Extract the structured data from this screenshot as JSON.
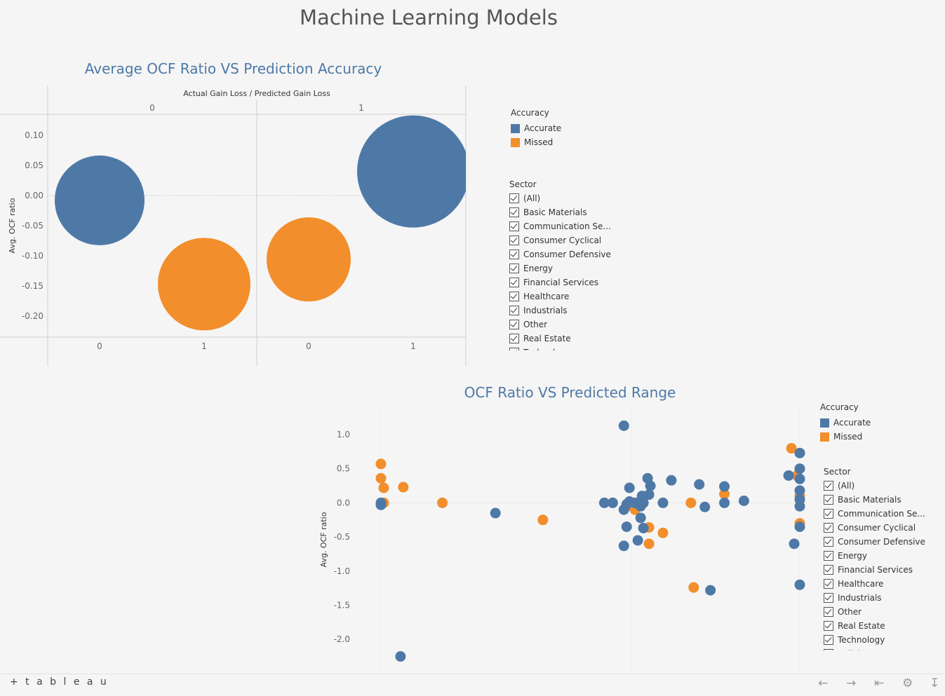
{
  "dashboard": {
    "title": "Machine Learning Models"
  },
  "colors": {
    "accurate": "#4e79a7",
    "missed": "#f28e2b",
    "title_blue": "#4e79a7"
  },
  "chart_data": [
    {
      "type": "scatter",
      "title": "Average OCF Ratio VS Prediction Accuracy",
      "column_header": "Actual Gain Loss / Predicted Gain Loss",
      "column_groups": [
        "0",
        "1"
      ],
      "categories": [
        "0",
        "1",
        "0",
        "1"
      ],
      "ylabel": "Avg. OCF ratio",
      "ylim": [
        -0.235,
        0.135
      ],
      "yticks": [
        "0.10",
        "0.05",
        "0.00",
        "-0.05",
        "-0.10",
        "-0.15",
        "-0.20"
      ],
      "yticks_values": [
        0.1,
        0.05,
        0.0,
        -0.05,
        -0.1,
        -0.15,
        -0.2
      ],
      "series": [
        {
          "name": "Accurate",
          "points": [
            {
              "panel": 0,
              "sub": 0,
              "y": -0.008,
              "size": 64
            },
            {
              "panel": 1,
              "sub": 1,
              "y": 0.04,
              "size": 80
            }
          ]
        },
        {
          "name": "Missed",
          "points": [
            {
              "panel": 0,
              "sub": 1,
              "y": -0.147,
              "size": 66
            },
            {
              "panel": 1,
              "sub": 0,
              "y": -0.106,
              "size": 60
            }
          ]
        }
      ]
    },
    {
      "type": "scatter",
      "title": "OCF Ratio VS Predicted Range",
      "ylabel": "Avg. OCF ratio",
      "ylim": [
        -2.46,
        1.37
      ],
      "yticks": [
        "1.0",
        "0.5",
        "0.0",
        "-0.5",
        "-1.0",
        "-1.5",
        "-2.0"
      ],
      "yticks_values": [
        1.0,
        0.5,
        0.0,
        -0.5,
        -1.0,
        -1.5,
        -2.0
      ],
      "series": [
        {
          "name": "Accurate",
          "points": [
            [
              0.0,
              0.0
            ],
            [
              0.0,
              -0.03
            ],
            [
              0.07,
              -2.25
            ],
            [
              0.41,
              -0.15
            ],
            [
              0.8,
              0.0
            ],
            [
              0.83,
              0.0
            ],
            [
              0.87,
              1.13
            ],
            [
              0.87,
              -0.1
            ],
            [
              0.88,
              -0.35
            ],
            [
              0.87,
              -0.63
            ],
            [
              0.88,
              -0.02
            ],
            [
              0.89,
              0.02
            ],
            [
              0.89,
              0.22
            ],
            [
              0.91,
              0.0
            ],
            [
              0.92,
              -0.55
            ],
            [
              0.93,
              -0.05
            ],
            [
              0.93,
              -0.22
            ],
            [
              0.935,
              0.1
            ],
            [
              0.94,
              0.0
            ],
            [
              0.94,
              -0.37
            ],
            [
              0.955,
              0.36
            ],
            [
              0.96,
              0.12
            ],
            [
              0.965,
              0.25
            ],
            [
              1.01,
              0.0
            ],
            [
              1.04,
              0.33
            ],
            [
              1.14,
              0.27
            ],
            [
              1.16,
              -0.06
            ],
            [
              1.23,
              0.24
            ],
            [
              1.23,
              0.0
            ],
            [
              1.3,
              0.03
            ],
            [
              1.18,
              -1.28
            ],
            [
              1.46,
              0.4
            ],
            [
              1.48,
              -0.6
            ],
            [
              1.5,
              0.73
            ],
            [
              1.5,
              0.5
            ],
            [
              1.5,
              0.35
            ],
            [
              1.5,
              0.18
            ],
            [
              1.5,
              0.05
            ],
            [
              1.5,
              -0.05
            ],
            [
              1.5,
              -0.35
            ],
            [
              1.5,
              -1.2
            ]
          ]
        },
        {
          "name": "Missed",
          "points": [
            [
              0.0,
              0.57
            ],
            [
              0.0,
              0.36
            ],
            [
              0.01,
              0.22
            ],
            [
              0.01,
              0.0
            ],
            [
              0.08,
              0.23
            ],
            [
              0.22,
              0.0
            ],
            [
              0.58,
              -0.25
            ],
            [
              0.89,
              -0.04
            ],
            [
              0.91,
              -0.1
            ],
            [
              0.93,
              0.02
            ],
            [
              0.96,
              -0.36
            ],
            [
              0.96,
              -0.6
            ],
            [
              1.01,
              -0.44
            ],
            [
              1.11,
              0.0
            ],
            [
              1.12,
              -1.24
            ],
            [
              1.23,
              0.13
            ],
            [
              1.47,
              0.8
            ],
            [
              1.49,
              0.4
            ],
            [
              1.5,
              0.1
            ],
            [
              1.5,
              -0.3
            ]
          ]
        }
      ]
    }
  ],
  "legend_top": {
    "title": "Accuracy",
    "items": [
      {
        "label": "Accurate"
      },
      {
        "label": "Missed"
      }
    ]
  },
  "sector_filter_top": {
    "title": "Sector",
    "items": [
      "(All)",
      "Basic Materials",
      "Communication Se...",
      "Consumer Cyclical",
      "Consumer Defensive",
      "Energy",
      "Financial Services",
      "Healthcare",
      "Industrials",
      "Other",
      "Real Estate",
      "Technology"
    ]
  },
  "legend_bottom": {
    "title": "Accuracy",
    "items": [
      {
        "label": "Accurate"
      },
      {
        "label": "Missed"
      }
    ]
  },
  "sector_filter_bottom": {
    "title": "Sector",
    "items": [
      "(All)",
      "Basic Materials",
      "Communication Se...",
      "Consumer Cyclical",
      "Consumer Defensive",
      "Energy",
      "Financial Services",
      "Healthcare",
      "Industrials",
      "Other",
      "Real Estate",
      "Technology",
      "Utilities"
    ]
  },
  "footer": {
    "logo_text": "+ t a b l e a u",
    "icons": [
      "undo-icon",
      "redo-icon",
      "revert-icon",
      "share-icon",
      "download-icon"
    ]
  }
}
